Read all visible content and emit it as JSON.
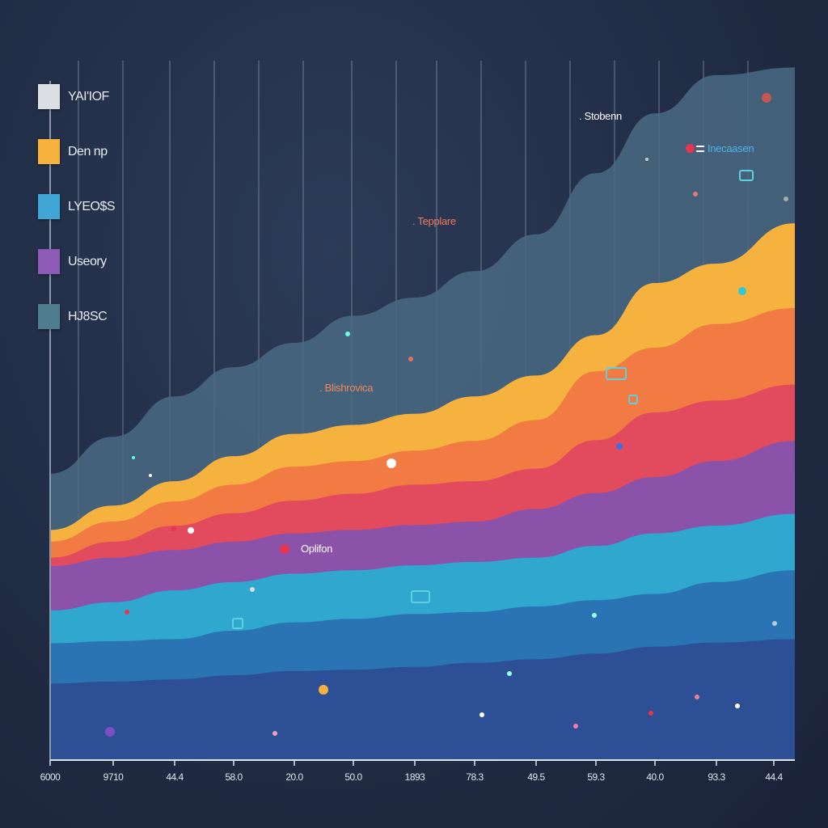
{
  "chart_data": {
    "type": "area",
    "stacked": true,
    "title": "",
    "xlabel": "",
    "ylabel": "",
    "ylim": [
      0,
      100
    ],
    "grid": {
      "vertical": true,
      "horizontal": false
    },
    "legend_placement": "left",
    "categories": [
      "6000",
      "9710",
      "44.4",
      "58.0",
      "20.0",
      "50.0",
      "1893",
      "78.3",
      "49.5",
      "59.3",
      "40.0",
      "93.3",
      "44.4"
    ],
    "series": [
      {
        "color": "#2d4f96",
        "values": [
          11.0,
          11.3,
          11.6,
          12.2,
          12.8,
          13.0,
          13.4,
          14.0,
          14.5,
          15.3,
          16.3,
          16.9,
          17.4
        ]
      },
      {
        "color": "#2a74b4",
        "values": [
          5.8,
          5.8,
          5.8,
          6.4,
          7.0,
          7.3,
          7.6,
          7.3,
          7.6,
          7.7,
          7.6,
          8.7,
          9.9
        ]
      },
      {
        "color": "#2fa7cf",
        "values": [
          4.7,
          5.6,
          7.0,
          7.0,
          7.0,
          7.0,
          7.0,
          7.2,
          7.0,
          7.8,
          8.7,
          8.1,
          8.1
        ]
      },
      {
        "color": "#8a52a8",
        "values": [
          6.4,
          6.4,
          5.8,
          5.8,
          5.8,
          5.8,
          5.8,
          5.8,
          7.0,
          7.6,
          8.1,
          9.3,
          10.5
        ]
      },
      {
        "color": "#e24a5e",
        "values": [
          1.2,
          2.3,
          3.5,
          4.1,
          4.7,
          5.2,
          5.8,
          5.8,
          5.8,
          7.6,
          9.3,
          8.7,
          8.1
        ]
      },
      {
        "color": "#f27a43",
        "values": [
          2.3,
          2.9,
          3.5,
          4.1,
          4.9,
          4.7,
          4.9,
          5.8,
          7.0,
          9.9,
          9.3,
          11.0,
          11.0
        ]
      },
      {
        "color": "#f6b23f",
        "values": [
          1.7,
          2.3,
          2.9,
          4.1,
          4.7,
          5.2,
          5.3,
          6.4,
          6.4,
          5.2,
          9.3,
          8.7,
          12.2
        ]
      },
      {
        "color": "#4a6a84",
        "values": [
          8.1,
          9.9,
          12.2,
          12.8,
          13.1,
          15.7,
          16.7,
          18.0,
          20.3,
          23.3,
          24.4,
          27.1,
          22.4
        ]
      }
    ],
    "legend": [
      {
        "label": "YAI'IOF",
        "color": "#dcdfe4"
      },
      {
        "label": "Den np",
        "color": "#f6b23c"
      },
      {
        "label": "LYEO$S",
        "color": "#3fa6d6"
      },
      {
        "label": "Useory",
        "color": "#8c5bb5"
      },
      {
        "label": "HJ8SC",
        "color": "#4f7d8e"
      }
    ],
    "annotations": [
      {
        "text": ". Stobenn",
        "color": "#ffffff"
      },
      {
        "text": "Inecaasen",
        "color": "#4fb4e4",
        "marker_color": "#e8344f"
      },
      {
        "text": ". Tepplare",
        "color": "#ef7a5e"
      },
      {
        "text": ". Blishrovica",
        "color": "#f08a5a"
      },
      {
        "text": "Oplifon",
        "color": "#ffffff",
        "marker_color": "#e8344f"
      }
    ]
  }
}
